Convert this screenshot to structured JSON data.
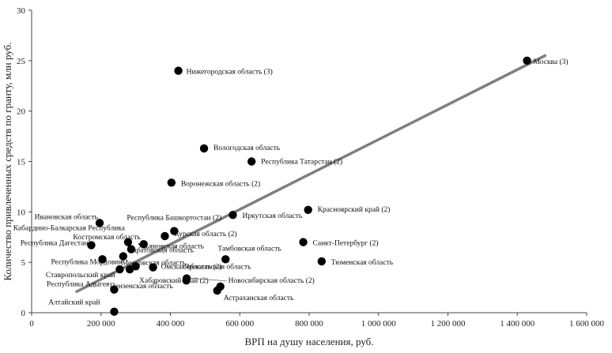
{
  "chart_data": {
    "type": "scatter",
    "title": "",
    "xlabel": "ВРП на душу населения, руб.",
    "ylabel": "Количество привлеченных средств по гранту, млн руб.",
    "xlim": [
      0,
      1600000
    ],
    "ylim": [
      0,
      30
    ],
    "x_ticks": [
      {
        "value": 0,
        "label": "0"
      },
      {
        "value": 200000,
        "label": "200 000"
      },
      {
        "value": 400000,
        "label": "400 000"
      },
      {
        "value": 600000,
        "label": "600 000"
      },
      {
        "value": 800000,
        "label": "800 000"
      },
      {
        "value": 1000000,
        "label": "1 000 000"
      },
      {
        "value": 1200000,
        "label": "1 200 000"
      },
      {
        "value": 1400000,
        "label": "1 400 000"
      },
      {
        "value": 1600000,
        "label": "1 600 000"
      }
    ],
    "y_ticks": [
      {
        "value": 0,
        "label": "0"
      },
      {
        "value": 5,
        "label": "5"
      },
      {
        "value": 10,
        "label": "10"
      },
      {
        "value": 15,
        "label": "15"
      },
      {
        "value": 20,
        "label": "20"
      },
      {
        "value": 25,
        "label": "25"
      },
      {
        "value": 30,
        "label": "30"
      }
    ],
    "trendline": {
      "x": [
        130000,
        1480000
      ],
      "y": [
        2.1,
        25.5
      ]
    },
    "points": [
      {
        "name": "Москва (3)",
        "x": 1428000,
        "y": 25.0
      },
      {
        "name": "Нижегородская область (3)",
        "x": 423000,
        "y": 24.0
      },
      {
        "name": "Вологодская область",
        "x": 497000,
        "y": 16.3
      },
      {
        "name": "Республика Татарстан (2)",
        "x": 634000,
        "y": 15.0
      },
      {
        "name": "Воронежская область (2)",
        "x": 403000,
        "y": 12.9
      },
      {
        "name": "Красноярский край (2)",
        "x": 797000,
        "y": 10.2
      },
      {
        "name": "Иркутская область",
        "x": 580000,
        "y": 9.7
      },
      {
        "name": "Ивановская область",
        "x": 196000,
        "y": 8.9
      },
      {
        "name": "Республика Башкортостан (2)",
        "x": 411000,
        "y": 8.1
      },
      {
        "name": "Курская область (2)",
        "x": 384000,
        "y": 7.6
      },
      {
        "name": "Кабардино-Балкарская Республика",
        "x": 278000,
        "y": 7.0
      },
      {
        "name": "Костромская область",
        "x": 323000,
        "y": 6.8
      },
      {
        "name": "Санкт-Петербург (2)",
        "x": 783000,
        "y": 7.0
      },
      {
        "name": "Республика Дагестан",
        "x": 172000,
        "y": 6.7
      },
      {
        "name": "Ульяновская область",
        "x": 287000,
        "y": 6.3
      },
      {
        "name": "Саратовская область",
        "x": 264000,
        "y": 5.6
      },
      {
        "name": "Тамбовская область",
        "x": 559000,
        "y": 5.3
      },
      {
        "name": "Тюменская область",
        "x": 836000,
        "y": 5.1
      },
      {
        "name": "Республика Мордовия",
        "x": 204000,
        "y": 5.3
      },
      {
        "name": "Московская область",
        "x": 300000,
        "y": 4.6
      },
      {
        "name": "Омская область (2)",
        "x": 350000,
        "y": 4.5
      },
      {
        "name": "Ставропольский край",
        "x": 254000,
        "y": 4.3
      },
      {
        "name": "Ярославская область",
        "x": 447000,
        "y": 3.4
      },
      {
        "name": "Пензенская область",
        "x": 446000,
        "y": 3.2
      },
      {
        "name": "Новосибирская область (2)",
        "x": 544000,
        "y": 2.6
      },
      {
        "name": "Астраханская область",
        "x": 535000,
        "y": 2.2
      },
      {
        "name": "Республика Адыгея",
        "x": 238000,
        "y": 2.3
      },
      {
        "name": "Хабаровский край (2)",
        "x": 283000,
        "y": 4.3
      },
      {
        "name": "Алтайский край",
        "x": 238000,
        "y": 0.1
      }
    ]
  }
}
